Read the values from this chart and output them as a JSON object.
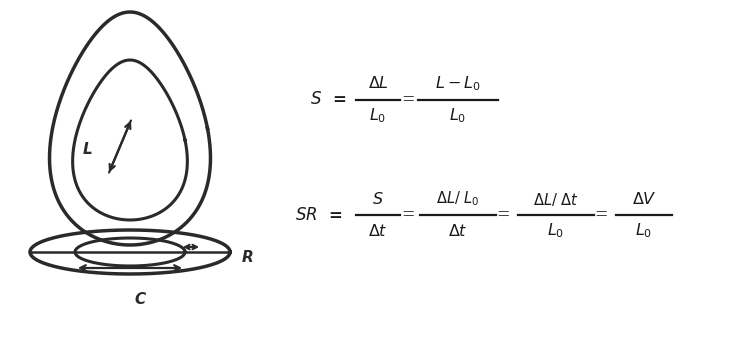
{
  "background_color": "#ffffff",
  "text_color": "#2a2a2a",
  "label_L": "L",
  "label_R": "R",
  "label_C": "C",
  "fig_width": 7.44,
  "fig_height": 3.4,
  "dpi": 100
}
